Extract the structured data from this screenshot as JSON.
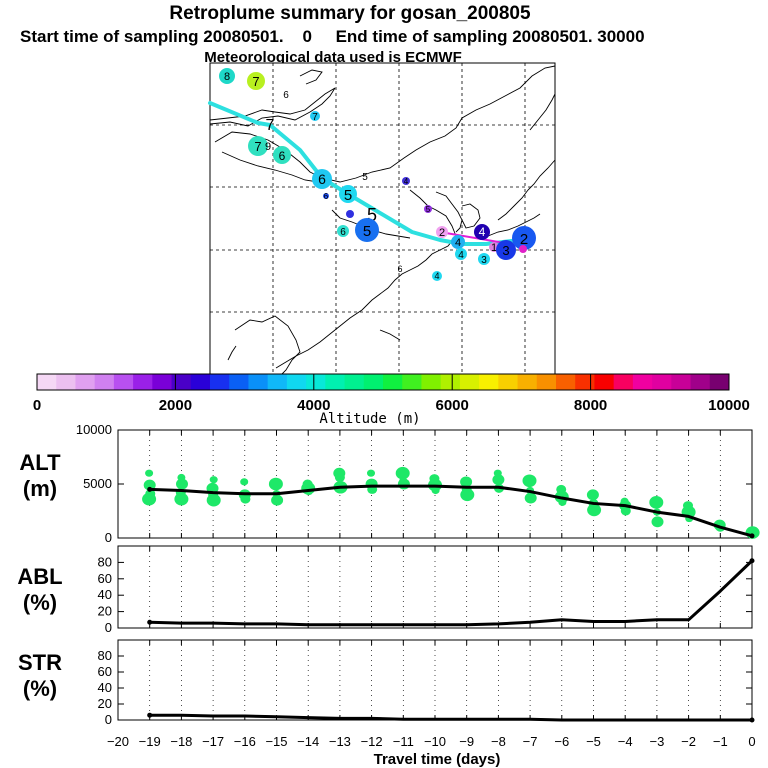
{
  "title": {
    "line1": "Retroplume summary for gosan_200805",
    "line2": "Start time of sampling 20080501.    0     End time of sampling 20080501. 30000",
    "line3": "Meteorological data used is ECMWF"
  },
  "colorbar": {
    "ticks": [
      "0",
      "2000",
      "4000",
      "6000",
      "8000",
      "10000"
    ],
    "label": "Altitude (m)",
    "colors": [
      "#f5d8f5",
      "#ecc0f0",
      "#e0a0f0",
      "#d080f0",
      "#b850f0",
      "#9a20e8",
      "#7a00d8",
      "#4a00c8",
      "#2a00d8",
      "#1830f0",
      "#0a60f5",
      "#0a90f8",
      "#10b8f8",
      "#10d8f0",
      "#08e8d8",
      "#00f0b0",
      "#00f090",
      "#00f070",
      "#10f040",
      "#40f020",
      "#80f000",
      "#b0f000",
      "#d8f000",
      "#f8f000",
      "#f8d000",
      "#f8b000",
      "#f89000",
      "#f86000",
      "#f83000",
      "#f80000",
      "#f80060",
      "#f000a0",
      "#e000a0",
      "#c80098",
      "#a0008a",
      "#780070"
    ]
  },
  "map": {
    "labels": [
      "8",
      "7",
      "6",
      "7",
      "7",
      "9",
      "6",
      "6",
      "5",
      "5",
      "5",
      "6",
      "6",
      "4",
      "5",
      "4",
      "4",
      "2",
      "1",
      "3",
      "4",
      "3",
      "2",
      "5",
      "4",
      "6"
    ],
    "track_color": "#2de0e0"
  },
  "chart_data": [
    {
      "type": "line",
      "name": "ALT",
      "ylabel": "ALT (m)",
      "ylabel_lines": [
        "ALT",
        "(m)"
      ],
      "x": [
        -19,
        -18,
        -17,
        -16,
        -15,
        -14,
        -13,
        -12,
        -11,
        -10,
        -9,
        -8,
        -7,
        -6,
        -5,
        -4,
        -3,
        -2,
        -1,
        0
      ],
      "values": [
        4500,
        4400,
        4200,
        4100,
        4100,
        4400,
        4700,
        4800,
        4800,
        4800,
        4700,
        4700,
        4300,
        3700,
        3200,
        3000,
        2400,
        2000,
        1000,
        200
      ],
      "ylim": [
        0,
        10000
      ],
      "yticks": [
        "0",
        "5000",
        "10000"
      ],
      "ytick_values": [
        0,
        5000,
        10000
      ],
      "scatter": [
        [
          -19,
          6000
        ],
        [
          -19,
          4900
        ],
        [
          -19,
          4100
        ],
        [
          -19,
          3600
        ],
        [
          -18,
          5600
        ],
        [
          -18,
          5000
        ],
        [
          -18,
          4200
        ],
        [
          -18,
          3600
        ],
        [
          -17,
          5400
        ],
        [
          -17,
          4600
        ],
        [
          -17,
          4000
        ],
        [
          -17,
          3500
        ],
        [
          -16,
          5200
        ],
        [
          -16,
          4000
        ],
        [
          -16,
          3600
        ],
        [
          -15,
          5000
        ],
        [
          -15,
          4100
        ],
        [
          -15,
          3500
        ],
        [
          -14,
          5000
        ],
        [
          -14,
          4600
        ],
        [
          -14,
          4300
        ],
        [
          -13,
          6000
        ],
        [
          -13,
          5600
        ],
        [
          -13,
          4700
        ],
        [
          -12,
          6000
        ],
        [
          -12,
          5000
        ],
        [
          -12,
          4500
        ],
        [
          -11,
          6000
        ],
        [
          -11,
          5300
        ],
        [
          -11,
          5000
        ],
        [
          -10,
          5500
        ],
        [
          -10,
          4900
        ],
        [
          -10,
          4400
        ],
        [
          -9,
          5200
        ],
        [
          -9,
          4500
        ],
        [
          -9,
          4000
        ],
        [
          -8,
          6000
        ],
        [
          -8,
          5400
        ],
        [
          -8,
          4600
        ],
        [
          -7,
          5300
        ],
        [
          -7,
          4400
        ],
        [
          -7,
          3700
        ],
        [
          -6,
          4500
        ],
        [
          -6,
          3800
        ],
        [
          -6,
          3300
        ],
        [
          -5,
          4000
        ],
        [
          -5,
          3200
        ],
        [
          -5,
          2600
        ],
        [
          -4,
          3400
        ],
        [
          -4,
          3000
        ],
        [
          -4,
          2500
        ],
        [
          -3,
          3300
        ],
        [
          -3,
          2400
        ],
        [
          -3,
          1500
        ],
        [
          -2,
          3000
        ],
        [
          -2,
          2400
        ],
        [
          -2,
          1800
        ],
        [
          -1,
          1200
        ],
        [
          -1,
          1000
        ],
        [
          0,
          500
        ]
      ],
      "scatter_color": "#1ee868"
    },
    {
      "type": "line",
      "name": "ABL",
      "ylabel": "ABL (%)",
      "ylabel_lines": [
        "ABL",
        "(%)"
      ],
      "x": [
        -19,
        -18,
        -17,
        -16,
        -15,
        -14,
        -13,
        -12,
        -11,
        -10,
        -9,
        -8,
        -7,
        -6,
        -5,
        -4,
        -3,
        -2,
        -1,
        0
      ],
      "values": [
        7,
        6,
        6,
        5,
        5,
        4,
        4,
        4,
        4,
        4,
        4,
        5,
        7,
        10,
        8,
        8,
        10,
        10,
        45,
        82
      ],
      "ylim": [
        0,
        100
      ],
      "yticks": [
        "0",
        "20",
        "40",
        "60",
        "80"
      ],
      "ytick_values": [
        0,
        20,
        40,
        60,
        80
      ]
    },
    {
      "type": "line",
      "name": "STR",
      "ylabel": "STR (%)",
      "ylabel_lines": [
        "STR",
        "(%)"
      ],
      "x": [
        -19,
        -18,
        -17,
        -16,
        -15,
        -14,
        -13,
        -12,
        -11,
        -10,
        -9,
        -8,
        -7,
        -6,
        -5,
        -4,
        -3,
        -2,
        -1,
        0
      ],
      "values": [
        6,
        6,
        5,
        5,
        4,
        3,
        2,
        2,
        1,
        1,
        1,
        1,
        1,
        0,
        0,
        0,
        0,
        0,
        0,
        0
      ],
      "ylim": [
        0,
        100
      ],
      "yticks": [
        "0",
        "20",
        "40",
        "60",
        "80"
      ],
      "ytick_values": [
        0,
        20,
        40,
        60,
        80
      ]
    }
  ],
  "xaxis": {
    "label": "Travel time (days)",
    "ticks": [
      "−20",
      "−19",
      "−18",
      "−17",
      "−16",
      "−15",
      "−14",
      "−13",
      "−12",
      "−11",
      "−10",
      "−9",
      "−8",
      "−7",
      "−6",
      "−5",
      "−4",
      "−3",
      "−2",
      "−1",
      "0"
    ],
    "tick_values": [
      -20,
      -19,
      -18,
      -17,
      -16,
      -15,
      -14,
      -13,
      -12,
      -11,
      -10,
      -9,
      -8,
      -7,
      -6,
      -5,
      -4,
      -3,
      -2,
      -1,
      0
    ]
  },
  "line_color": "#000000"
}
